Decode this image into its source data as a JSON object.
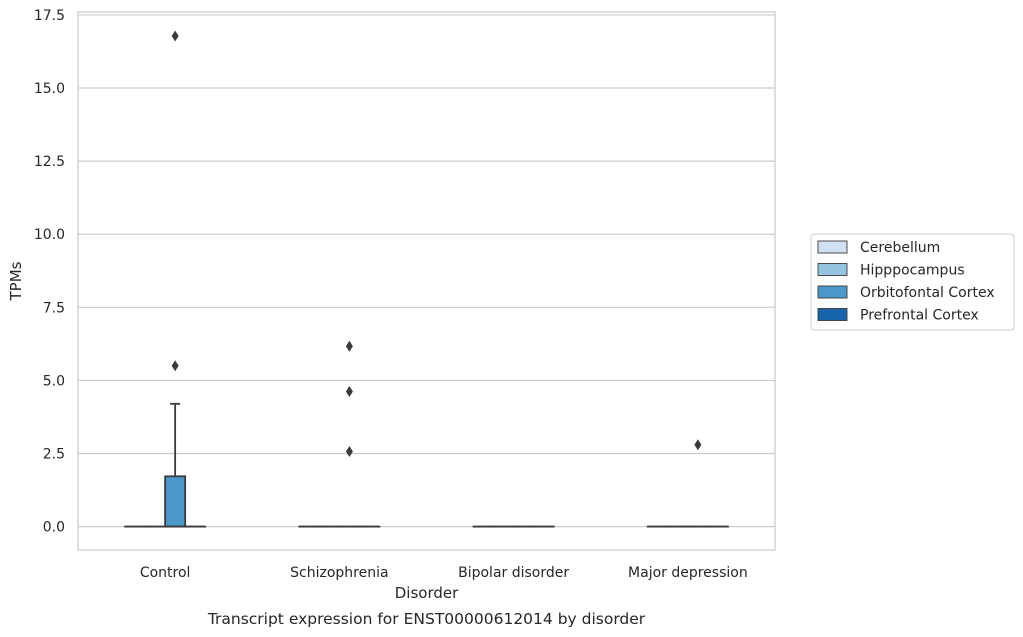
{
  "chart_data": {
    "type": "box",
    "title": "Transcript expression for ENST00000612014 by disorder",
    "xlabel": "Disorder",
    "ylabel": "TPMs",
    "ylim": [
      -0.8,
      17.6
    ],
    "yticks": [
      0.0,
      2.5,
      5.0,
      7.5,
      10.0,
      12.5,
      15.0,
      17.5
    ],
    "ytick_labels": [
      "0.0",
      "2.5",
      "5.0",
      "7.5",
      "10.0",
      "12.5",
      "15.0",
      "17.5"
    ],
    "grid": true,
    "legend_position": "right",
    "categories": [
      "Control",
      "Schizophrenia",
      "Bipolar disorder",
      "Major depression"
    ],
    "series": [
      {
        "name": "Cerebellum",
        "color": "#d0e1f2",
        "boxes": [
          {
            "category": "Control",
            "min": 0,
            "q1": 0,
            "median": 0,
            "q3": 0,
            "max": 0,
            "outliers": []
          },
          {
            "category": "Schizophrenia",
            "min": 0,
            "q1": 0,
            "median": 0,
            "q3": 0,
            "max": 0,
            "outliers": []
          },
          {
            "category": "Bipolar disorder",
            "min": 0,
            "q1": 0,
            "median": 0,
            "q3": 0,
            "max": 0,
            "outliers": []
          },
          {
            "category": "Major depression",
            "min": 0,
            "q1": 0,
            "median": 0,
            "q3": 0,
            "max": 0,
            "outliers": []
          }
        ]
      },
      {
        "name": "Hipppocampus",
        "color": "#94c4df",
        "boxes": [
          {
            "category": "Control",
            "min": 0,
            "q1": 0,
            "median": 0,
            "q3": 0,
            "max": 0,
            "outliers": []
          },
          {
            "category": "Schizophrenia",
            "min": 0,
            "q1": 0,
            "median": 0,
            "q3": 0,
            "max": 0,
            "outliers": []
          },
          {
            "category": "Bipolar disorder",
            "min": 0,
            "q1": 0,
            "median": 0,
            "q3": 0,
            "max": 0,
            "outliers": []
          },
          {
            "category": "Major depression",
            "min": 0,
            "q1": 0,
            "median": 0,
            "q3": 0,
            "max": 0,
            "outliers": []
          }
        ]
      },
      {
        "name": "Orbitofontal Cortex",
        "color": "#4a98c9",
        "boxes": [
          {
            "category": "Control",
            "min": 0,
            "q1": 0,
            "median": 0,
            "q3": 1.72,
            "max": 4.2,
            "outliers": [
              5.5,
              16.78
            ]
          },
          {
            "category": "Schizophrenia",
            "min": 0,
            "q1": 0,
            "median": 0,
            "q3": 0,
            "max": 0,
            "outliers": [
              2.57,
              4.62,
              6.17
            ]
          },
          {
            "category": "Bipolar disorder",
            "min": 0,
            "q1": 0,
            "median": 0,
            "q3": 0,
            "max": 0,
            "outliers": []
          },
          {
            "category": "Major depression",
            "min": 0,
            "q1": 0,
            "median": 0,
            "q3": 0,
            "max": 0,
            "outliers": [
              2.8
            ]
          }
        ]
      },
      {
        "name": "Prefrontal Cortex",
        "color": "#1764ab",
        "boxes": [
          {
            "category": "Control",
            "min": 0,
            "q1": 0,
            "median": 0,
            "q3": 0,
            "max": 0,
            "outliers": []
          },
          {
            "category": "Schizophrenia",
            "min": 0,
            "q1": 0,
            "median": 0,
            "q3": 0,
            "max": 0,
            "outliers": []
          },
          {
            "category": "Bipolar disorder",
            "min": 0,
            "q1": 0,
            "median": 0,
            "q3": 0,
            "max": 0,
            "outliers": []
          },
          {
            "category": "Major depression",
            "min": 0,
            "q1": 0,
            "median": 0,
            "q3": 0,
            "max": 0,
            "outliers": []
          }
        ]
      }
    ]
  },
  "colors": {
    "grid": "#cccccc",
    "frame": "#cccccc",
    "box_edge": "#3a3a3a"
  }
}
